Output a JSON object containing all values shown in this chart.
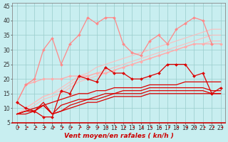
{
  "x": [
    0,
    1,
    2,
    3,
    4,
    5,
    6,
    7,
    8,
    9,
    10,
    11,
    12,
    13,
    14,
    15,
    16,
    17,
    18,
    19,
    20,
    21,
    22,
    23
  ],
  "series": [
    {
      "name": "rafales_marked_dark",
      "y": [
        12,
        10,
        9,
        7,
        7,
        16,
        15,
        21,
        20,
        19,
        24,
        22,
        22,
        20,
        20,
        21,
        22,
        25,
        25,
        25,
        21,
        22,
        15,
        17
      ],
      "color": "#dd0000",
      "alpha": 1.0,
      "lw": 0.9,
      "marker": "D",
      "ms": 2.0,
      "zorder": 5
    },
    {
      "name": "line_dark1",
      "y": [
        8,
        9,
        10,
        11,
        12,
        13,
        14,
        15,
        15,
        16,
        16,
        17,
        17,
        17,
        17,
        18,
        18,
        18,
        18,
        19,
        19,
        19,
        19,
        19
      ],
      "color": "#dd0000",
      "alpha": 1.0,
      "lw": 0.9,
      "marker": null,
      "ms": 0,
      "zorder": 3
    },
    {
      "name": "line_dark2",
      "y": [
        8,
        9,
        9,
        11,
        8,
        11,
        12,
        13,
        13,
        14,
        15,
        15,
        16,
        16,
        16,
        17,
        17,
        17,
        17,
        17,
        17,
        17,
        16,
        16
      ],
      "color": "#dd0000",
      "alpha": 1.0,
      "lw": 0.9,
      "marker": null,
      "ms": 0,
      "zorder": 3
    },
    {
      "name": "line_dark3",
      "y": [
        8,
        9,
        9,
        12,
        8,
        9,
        11,
        12,
        13,
        13,
        14,
        15,
        15,
        15,
        15,
        16,
        16,
        16,
        16,
        16,
        16,
        16,
        15,
        15
      ],
      "color": "#dd0000",
      "alpha": 1.0,
      "lw": 0.9,
      "marker": null,
      "ms": 0,
      "zorder": 3
    },
    {
      "name": "line_dark4_thin",
      "y": [
        8,
        8,
        9,
        11,
        8,
        9,
        10,
        11,
        12,
        12,
        13,
        14,
        14,
        14,
        14,
        15,
        15,
        15,
        15,
        15,
        15,
        15,
        15,
        15
      ],
      "color": "#dd0000",
      "alpha": 1.0,
      "lw": 0.9,
      "marker": null,
      "ms": 0,
      "zorder": 3
    },
    {
      "name": "pink_marked",
      "y": [
        12,
        18,
        19,
        20,
        20,
        20,
        21,
        21,
        21,
        22,
        22,
        23,
        24,
        25,
        26,
        27,
        28,
        29,
        30,
        31,
        32,
        32,
        32,
        32
      ],
      "color": "#ffaaaa",
      "alpha": 1.0,
      "lw": 0.9,
      "marker": "D",
      "ms": 2.0,
      "zorder": 4
    },
    {
      "name": "pink_volatile",
      "y": [
        12,
        18,
        20,
        30,
        34,
        25,
        32,
        35,
        41,
        39,
        41,
        41,
        32,
        29,
        28,
        33,
        35,
        32,
        37,
        39,
        41,
        40,
        32,
        null
      ],
      "color": "#ff8888",
      "alpha": 1.0,
      "lw": 0.9,
      "marker": "D",
      "ms": 2.0,
      "zorder": 4
    },
    {
      "name": "light_pink1",
      "y": [
        8,
        10,
        12,
        14,
        15,
        17,
        19,
        21,
        22,
        24,
        25,
        26,
        27,
        28,
        29,
        30,
        31,
        32,
        33,
        34,
        35,
        36,
        37,
        37
      ],
      "color": "#ffbbbb",
      "alpha": 0.85,
      "lw": 0.9,
      "marker": null,
      "ms": 0,
      "zorder": 2
    },
    {
      "name": "light_pink2",
      "y": [
        8,
        10,
        12,
        14,
        15,
        16,
        18,
        20,
        21,
        22,
        23,
        24,
        25,
        26,
        27,
        28,
        29,
        30,
        31,
        32,
        33,
        34,
        35,
        35
      ],
      "color": "#ffbbbb",
      "alpha": 0.85,
      "lw": 0.9,
      "marker": null,
      "ms": 0,
      "zorder": 2
    },
    {
      "name": "light_pink3",
      "y": [
        8,
        9,
        11,
        13,
        14,
        15,
        17,
        19,
        20,
        21,
        22,
        23,
        24,
        25,
        26,
        27,
        28,
        29,
        30,
        31,
        32,
        32,
        33,
        33
      ],
      "color": "#ffbbbb",
      "alpha": 0.85,
      "lw": 0.9,
      "marker": null,
      "ms": 0,
      "zorder": 2
    }
  ],
  "xlabel": "Vent moyen/en rafales ( kn/h )",
  "ylim": [
    5,
    46
  ],
  "xlim": [
    -0.5,
    23.5
  ],
  "yticks": [
    5,
    10,
    15,
    20,
    25,
    30,
    35,
    40,
    45
  ],
  "xticks": [
    0,
    1,
    2,
    3,
    4,
    5,
    6,
    7,
    8,
    9,
    10,
    11,
    12,
    13,
    14,
    15,
    16,
    17,
    18,
    19,
    20,
    21,
    22,
    23
  ],
  "bg_color": "#c8eef0",
  "grid_color": "#99cccc",
  "xlabel_color": "#cc0000",
  "xlabel_fontsize": 6.5,
  "tick_fontsize": 5.5,
  "arrow_color": "#cc0000"
}
